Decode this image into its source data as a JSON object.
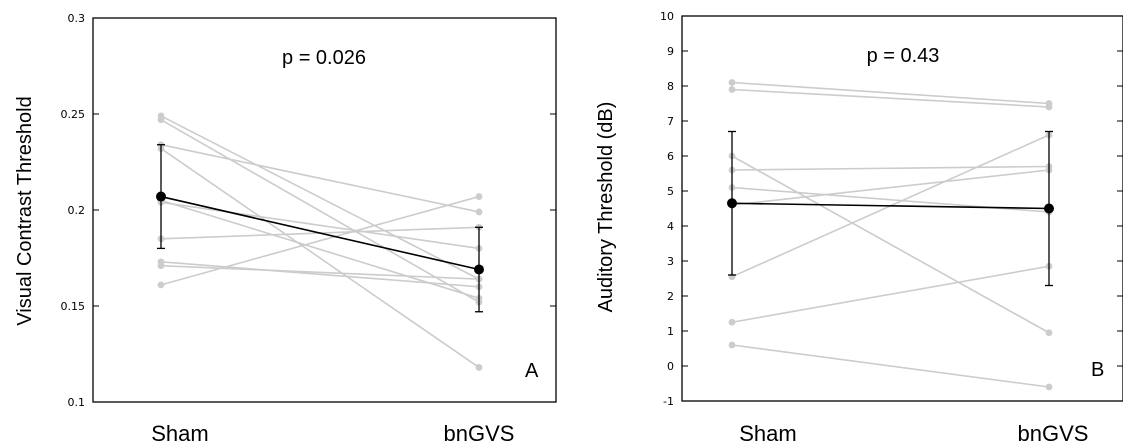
{
  "chart_data": [
    {
      "type": "line",
      "panel_label": "A",
      "annotation": "p = 0.026",
      "ylabel": "Visual Contrast Threshold",
      "categories": [
        "Sham",
        "bnGVS"
      ],
      "ylim": [
        0.1,
        0.3
      ],
      "yticks": [
        "0.1",
        "0.15",
        "0.2",
        "0.25",
        "0.3"
      ],
      "individual_pairs": [
        [
          0.249,
          0.164
        ],
        [
          0.247,
          0.152
        ],
        [
          0.234,
          0.199
        ],
        [
          0.232,
          0.118
        ],
        [
          0.204,
          0.18
        ],
        [
          0.185,
          0.191
        ],
        [
          0.173,
          0.16
        ],
        [
          0.171,
          0.164
        ],
        [
          0.161,
          0.207
        ],
        [
          0.205,
          0.154
        ]
      ],
      "mean": [
        0.207,
        0.169
      ],
      "error": [
        0.027,
        0.022
      ],
      "colors": {
        "individual": "#cccccc",
        "mean": "#000000"
      }
    },
    {
      "type": "line",
      "panel_label": "B",
      "annotation": "p = 0.43",
      "ylabel": "Auditory Threshold (dB)",
      "categories": [
        "Sham",
        "bnGVS"
      ],
      "ylim": [
        -1,
        10
      ],
      "yticks": [
        "-1",
        "0",
        "1",
        "2",
        "3",
        "4",
        "5",
        "6",
        "7",
        "8",
        "9",
        "10"
      ],
      "individual_pairs": [
        [
          8.1,
          7.5
        ],
        [
          7.9,
          7.4
        ],
        [
          6.0,
          0.95
        ],
        [
          5.6,
          5.7
        ],
        [
          5.1,
          4.4
        ],
        [
          4.6,
          5.6
        ],
        [
          2.55,
          6.6
        ],
        [
          1.25,
          2.85
        ],
        [
          0.6,
          -0.6
        ]
      ],
      "mean": [
        4.65,
        4.5
      ],
      "error": [
        2.05,
        2.2
      ],
      "colors": {
        "individual": "#cccccc",
        "mean": "#000000"
      }
    }
  ]
}
